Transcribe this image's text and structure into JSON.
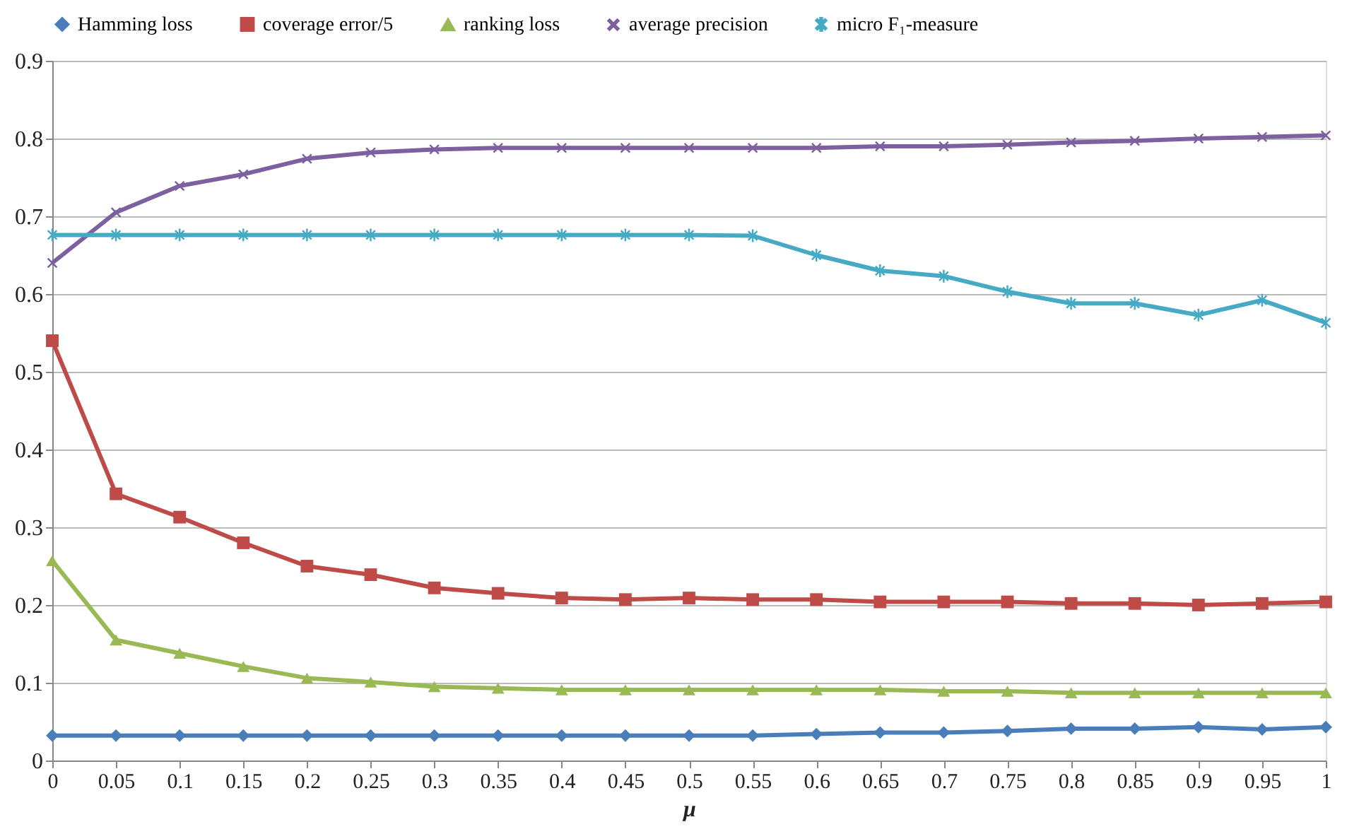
{
  "chart_data": {
    "type": "line",
    "xlabel": "μ",
    "categories": [
      "0",
      "0.05",
      "0.1",
      "0.15",
      "0.2",
      "0.25",
      "0.3",
      "0.35",
      "0.4",
      "0.45",
      "0.5",
      "0.55",
      "0.6",
      "0.65",
      "0.7",
      "0.75",
      "0.8",
      "0.85",
      "0.9",
      "0.95",
      "1"
    ],
    "series": [
      {
        "name": "Hamming loss",
        "color": "#4a7ebb",
        "marker": "diamond",
        "values": [
          0.032,
          0.032,
          0.032,
          0.032,
          0.032,
          0.032,
          0.032,
          0.032,
          0.032,
          0.032,
          0.032,
          0.032,
          0.034,
          0.036,
          0.036,
          0.038,
          0.041,
          0.041,
          0.043,
          0.04,
          0.043
        ]
      },
      {
        "name": "coverage error/5",
        "color": "#be4b48",
        "marker": "square",
        "values": [
          0.54,
          0.343,
          0.313,
          0.28,
          0.25,
          0.239,
          0.222,
          0.215,
          0.209,
          0.207,
          0.209,
          0.207,
          0.207,
          0.204,
          0.204,
          0.204,
          0.202,
          0.202,
          0.2,
          0.202,
          0.204
        ]
      },
      {
        "name": "ranking loss",
        "color": "#98b954",
        "marker": "triangle",
        "values": [
          0.257,
          0.155,
          0.138,
          0.121,
          0.106,
          0.101,
          0.095,
          0.093,
          0.091,
          0.091,
          0.091,
          0.091,
          0.091,
          0.091,
          0.089,
          0.089,
          0.087,
          0.087,
          0.087,
          0.087,
          0.087
        ]
      },
      {
        "name": "average precision",
        "color": "#7d60a0",
        "marker": "cross",
        "values": [
          0.64,
          0.705,
          0.739,
          0.754,
          0.774,
          0.782,
          0.786,
          0.788,
          0.788,
          0.788,
          0.788,
          0.788,
          0.788,
          0.79,
          0.79,
          0.792,
          0.795,
          0.797,
          0.8,
          0.802,
          0.804
        ]
      },
      {
        "name": "micro F₁-measure",
        "color": "#46aac5",
        "marker": "cross",
        "values": [
          0.676,
          0.676,
          0.676,
          0.676,
          0.676,
          0.676,
          0.676,
          0.676,
          0.676,
          0.676,
          0.676,
          0.675,
          0.65,
          0.63,
          0.623,
          0.603,
          0.588,
          0.588,
          0.573,
          0.592,
          0.563
        ]
      }
    ],
    "ylim": [
      0,
      0.9
    ],
    "yticks": [
      0,
      0.1,
      0.2,
      0.3,
      0.4,
      0.5,
      0.6,
      0.7,
      0.8,
      0.9
    ],
    "grid": "y",
    "legend": "top",
    "line_style": "solid"
  }
}
